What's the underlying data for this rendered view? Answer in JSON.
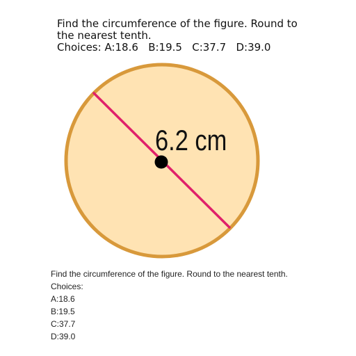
{
  "header": {
    "question_line1": "Find the circumference of the figure. Round to",
    "question_line2": "the nearest tenth.",
    "choices_line": "Choices: A:18.6   B:19.5   C:37.7   D:39.0"
  },
  "figure": {
    "measurement_label": "6.2 cm",
    "segment": "diameter",
    "fill_color": "#ffe3b3",
    "border_color": "#d8993b",
    "segment_color": "#e0206a",
    "center_dot_color": "#000000"
  },
  "footer": {
    "question": "Find the circumference of the figure. Round to the nearest tenth.",
    "choices_label": "Choices:",
    "choices": [
      "A:18.6",
      "B:19.5",
      "C:37.7",
      "D:39.0"
    ]
  }
}
